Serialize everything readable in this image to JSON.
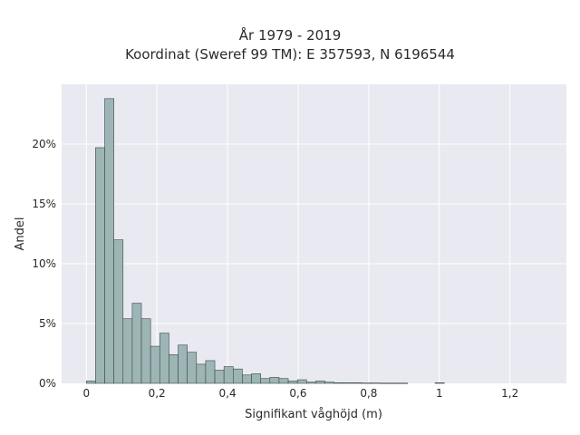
{
  "chart_data": {
    "type": "bar",
    "title": "År 1979 - 2019",
    "subtitle": "Koordinat (Sweref 99 TM): E 357593, N 6196544",
    "xlabel": "Signifikant våghöjd (m)",
    "ylabel": "Andel",
    "xlim": [
      -0.07,
      1.36
    ],
    "ylim": [
      0,
      25
    ],
    "grid": true,
    "x_ticks": [
      0,
      0.2,
      0.4,
      0.6,
      0.8,
      1,
      1.2
    ],
    "x_tick_labels": [
      "0",
      "0,2",
      "0,4",
      "0,6",
      "0,8",
      "1",
      "1,2"
    ],
    "y_ticks": [
      0,
      5,
      10,
      15,
      20
    ],
    "y_tick_labels": [
      "0%",
      "5%",
      "10%",
      "15%",
      "20%"
    ],
    "bin_width": 0.026,
    "bin_starts": [
      0.0,
      0.026,
      0.052,
      0.078,
      0.104,
      0.13,
      0.156,
      0.182,
      0.208,
      0.234,
      0.26,
      0.286,
      0.312,
      0.338,
      0.364,
      0.39,
      0.416,
      0.442,
      0.468,
      0.494,
      0.52,
      0.546,
      0.572,
      0.598,
      0.624,
      0.65,
      0.676,
      0.702,
      0.728,
      0.754,
      0.78,
      0.806,
      0.832,
      0.858,
      0.884,
      0.91,
      0.936,
      0.962,
      0.988,
      1.014
    ],
    "values": [
      0.2,
      19.7,
      23.8,
      12.0,
      5.4,
      6.7,
      5.4,
      3.1,
      4.2,
      2.4,
      3.2,
      2.6,
      1.6,
      1.9,
      1.1,
      1.4,
      1.2,
      0.7,
      0.8,
      0.4,
      0.5,
      0.4,
      0.2,
      0.3,
      0.1,
      0.2,
      0.1,
      0.05,
      0.05,
      0.05,
      0.03,
      0.03,
      0.02,
      0.02,
      0.02,
      0,
      0,
      0,
      0.05,
      0
    ],
    "colors": {
      "bar_fill": "#9eb5b5",
      "bar_stroke": "#3a4a4a",
      "plot_bg": "#e9e9f2",
      "grid": "#ffffff"
    }
  }
}
